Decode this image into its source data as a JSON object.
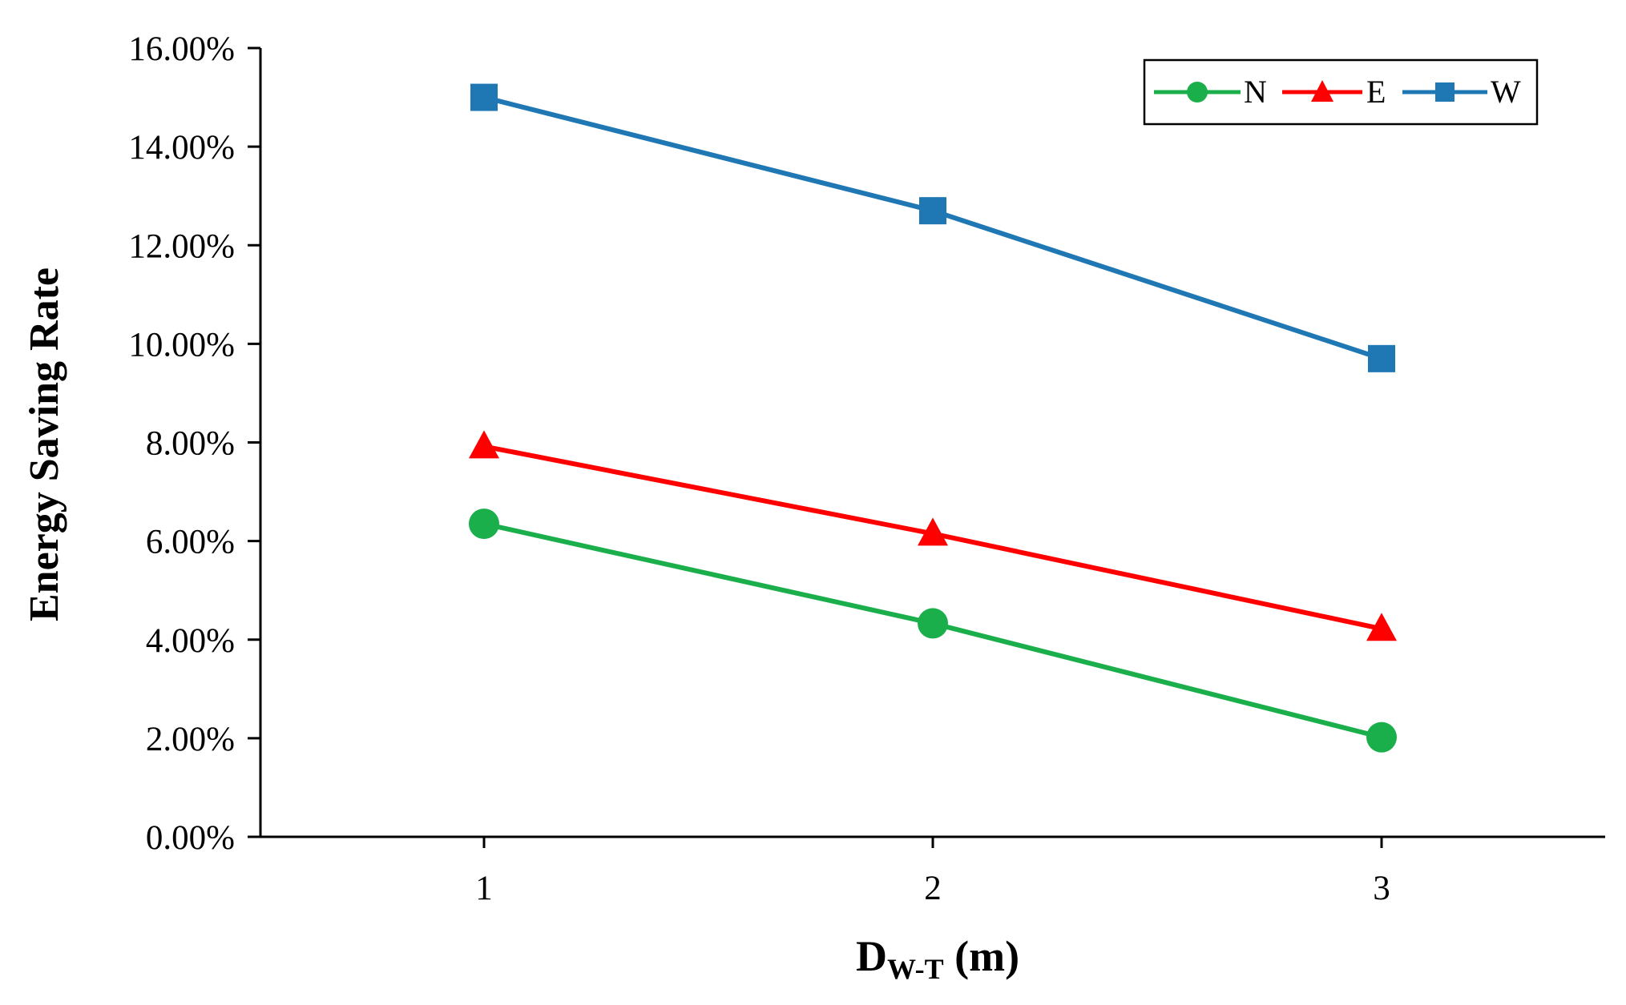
{
  "chart_data": {
    "type": "line",
    "title": "",
    "ylabel": "Energy Saving Rate",
    "xlabel": {
      "main": "D",
      "sub": "W-T",
      "unit": " (m)"
    },
    "categories": [
      "1",
      "2",
      "3"
    ],
    "yticks": [
      "0.00%",
      "2.00%",
      "4.00%",
      "6.00%",
      "8.00%",
      "10.00%",
      "12.00%",
      "14.00%",
      "16.00%"
    ],
    "ylim": [
      0,
      16
    ],
    "grid": false,
    "legend_position": "top-right",
    "series": [
      {
        "name": "N",
        "marker": "circle",
        "color": "#1aaf4b",
        "values": [
          6.35,
          4.33,
          2.02
        ]
      },
      {
        "name": "E",
        "marker": "triangle",
        "color": "#ff0000",
        "values": [
          7.92,
          6.15,
          4.22
        ]
      },
      {
        "name": "W",
        "marker": "square",
        "color": "#1f77b4",
        "values": [
          15.0,
          12.7,
          9.7
        ]
      }
    ]
  }
}
